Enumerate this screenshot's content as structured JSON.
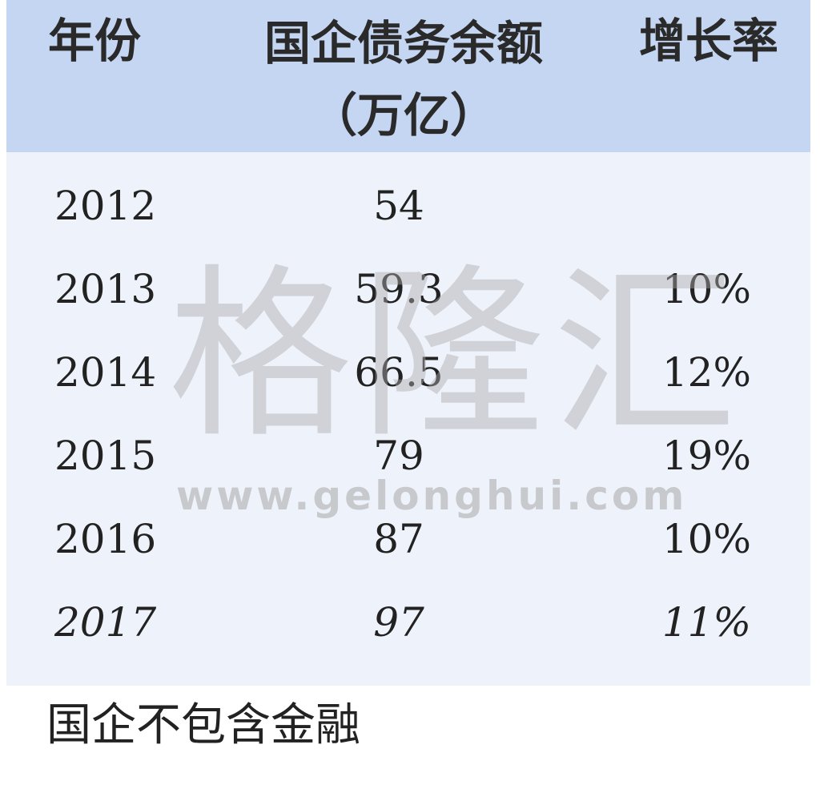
{
  "chart_data": {
    "type": "table",
    "columns": [
      "年份",
      "国企债务余额\n（万亿）",
      "增长率"
    ],
    "header": {
      "year": "年份",
      "debt": "国企债务余额",
      "debt_unit": "（万亿）",
      "rate": "增长率"
    },
    "rows": [
      {
        "year": "2012",
        "debt": "54",
        "rate": "",
        "italic": false
      },
      {
        "year": "2013",
        "debt": "59.3",
        "rate": "10%",
        "italic": false
      },
      {
        "year": "2014",
        "debt": "66.5",
        "rate": "12%",
        "italic": false
      },
      {
        "year": "2015",
        "debt": "79",
        "rate": "19%",
        "italic": false
      },
      {
        "year": "2016",
        "debt": "87",
        "rate": "10%",
        "italic": false
      },
      {
        "year": "2017",
        "debt": "97",
        "rate": "11%",
        "italic": true
      }
    ],
    "footnote": "国企不包含金融",
    "colors": {
      "header_bg": "#c5d6f2",
      "body_bg": "#eef2fb"
    }
  },
  "watermark": {
    "text": "格隆汇",
    "url": "www.gelonghui.com"
  }
}
